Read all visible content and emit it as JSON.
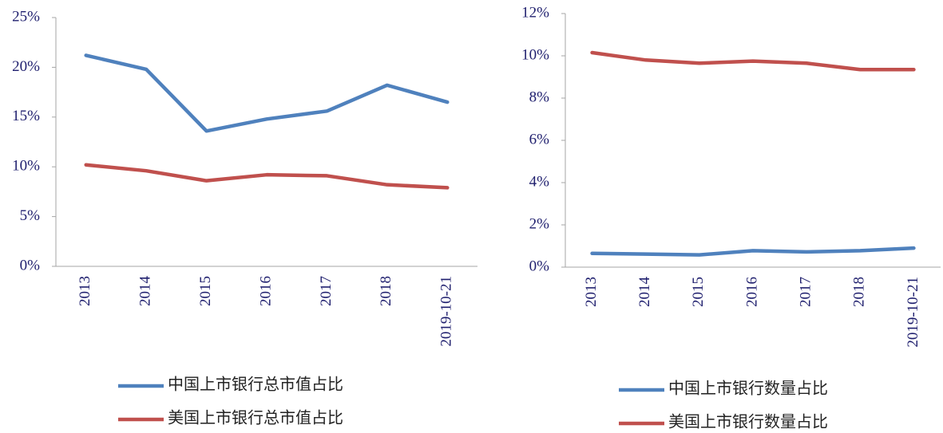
{
  "chart_data": [
    {
      "type": "line",
      "categories": [
        "2013",
        "2014",
        "2015",
        "2016",
        "2017",
        "2018",
        "2019-10-21"
      ],
      "series": [
        {
          "name": "中国上市银行总市值占比",
          "color": "#4f81bd",
          "values": [
            21.2,
            19.8,
            13.6,
            14.8,
            15.6,
            18.2,
            16.5
          ]
        },
        {
          "name": "美国上市银行总市值占比",
          "color": "#c0504d",
          "values": [
            10.2,
            9.6,
            8.6,
            9.2,
            9.1,
            8.2,
            7.9
          ]
        }
      ],
      "ylim": [
        0,
        25
      ],
      "yticks": [
        {
          "value": 0,
          "label": "0%"
        },
        {
          "value": 5,
          "label": "5%"
        },
        {
          "value": 10,
          "label": "10%"
        },
        {
          "value": 15,
          "label": "15%"
        },
        {
          "value": 20,
          "label": "20%"
        },
        {
          "value": 25,
          "label": "25%"
        }
      ],
      "grid": false,
      "legend": "bottom"
    },
    {
      "type": "line",
      "categories": [
        "2013",
        "2014",
        "2015",
        "2016",
        "2017",
        "2018",
        "2019-10-21"
      ],
      "series": [
        {
          "name": "中国上市银行数量占比",
          "color": "#4f81bd",
          "values": [
            0.65,
            0.62,
            0.58,
            0.78,
            0.72,
            0.78,
            0.9
          ]
        },
        {
          "name": "美国上市银行数量占比",
          "color": "#c0504d",
          "values": [
            10.15,
            9.8,
            9.65,
            9.75,
            9.65,
            9.35,
            9.35
          ]
        }
      ],
      "ylim": [
        0,
        12
      ],
      "yticks": [
        {
          "value": 0,
          "label": "0%"
        },
        {
          "value": 2,
          "label": "2%"
        },
        {
          "value": 4,
          "label": "4%"
        },
        {
          "value": 6,
          "label": "6%"
        },
        {
          "value": 8,
          "label": "8%"
        },
        {
          "value": 10,
          "label": "10%"
        },
        {
          "value": 12,
          "label": "12%"
        }
      ],
      "grid": false,
      "legend": "bottom"
    }
  ]
}
